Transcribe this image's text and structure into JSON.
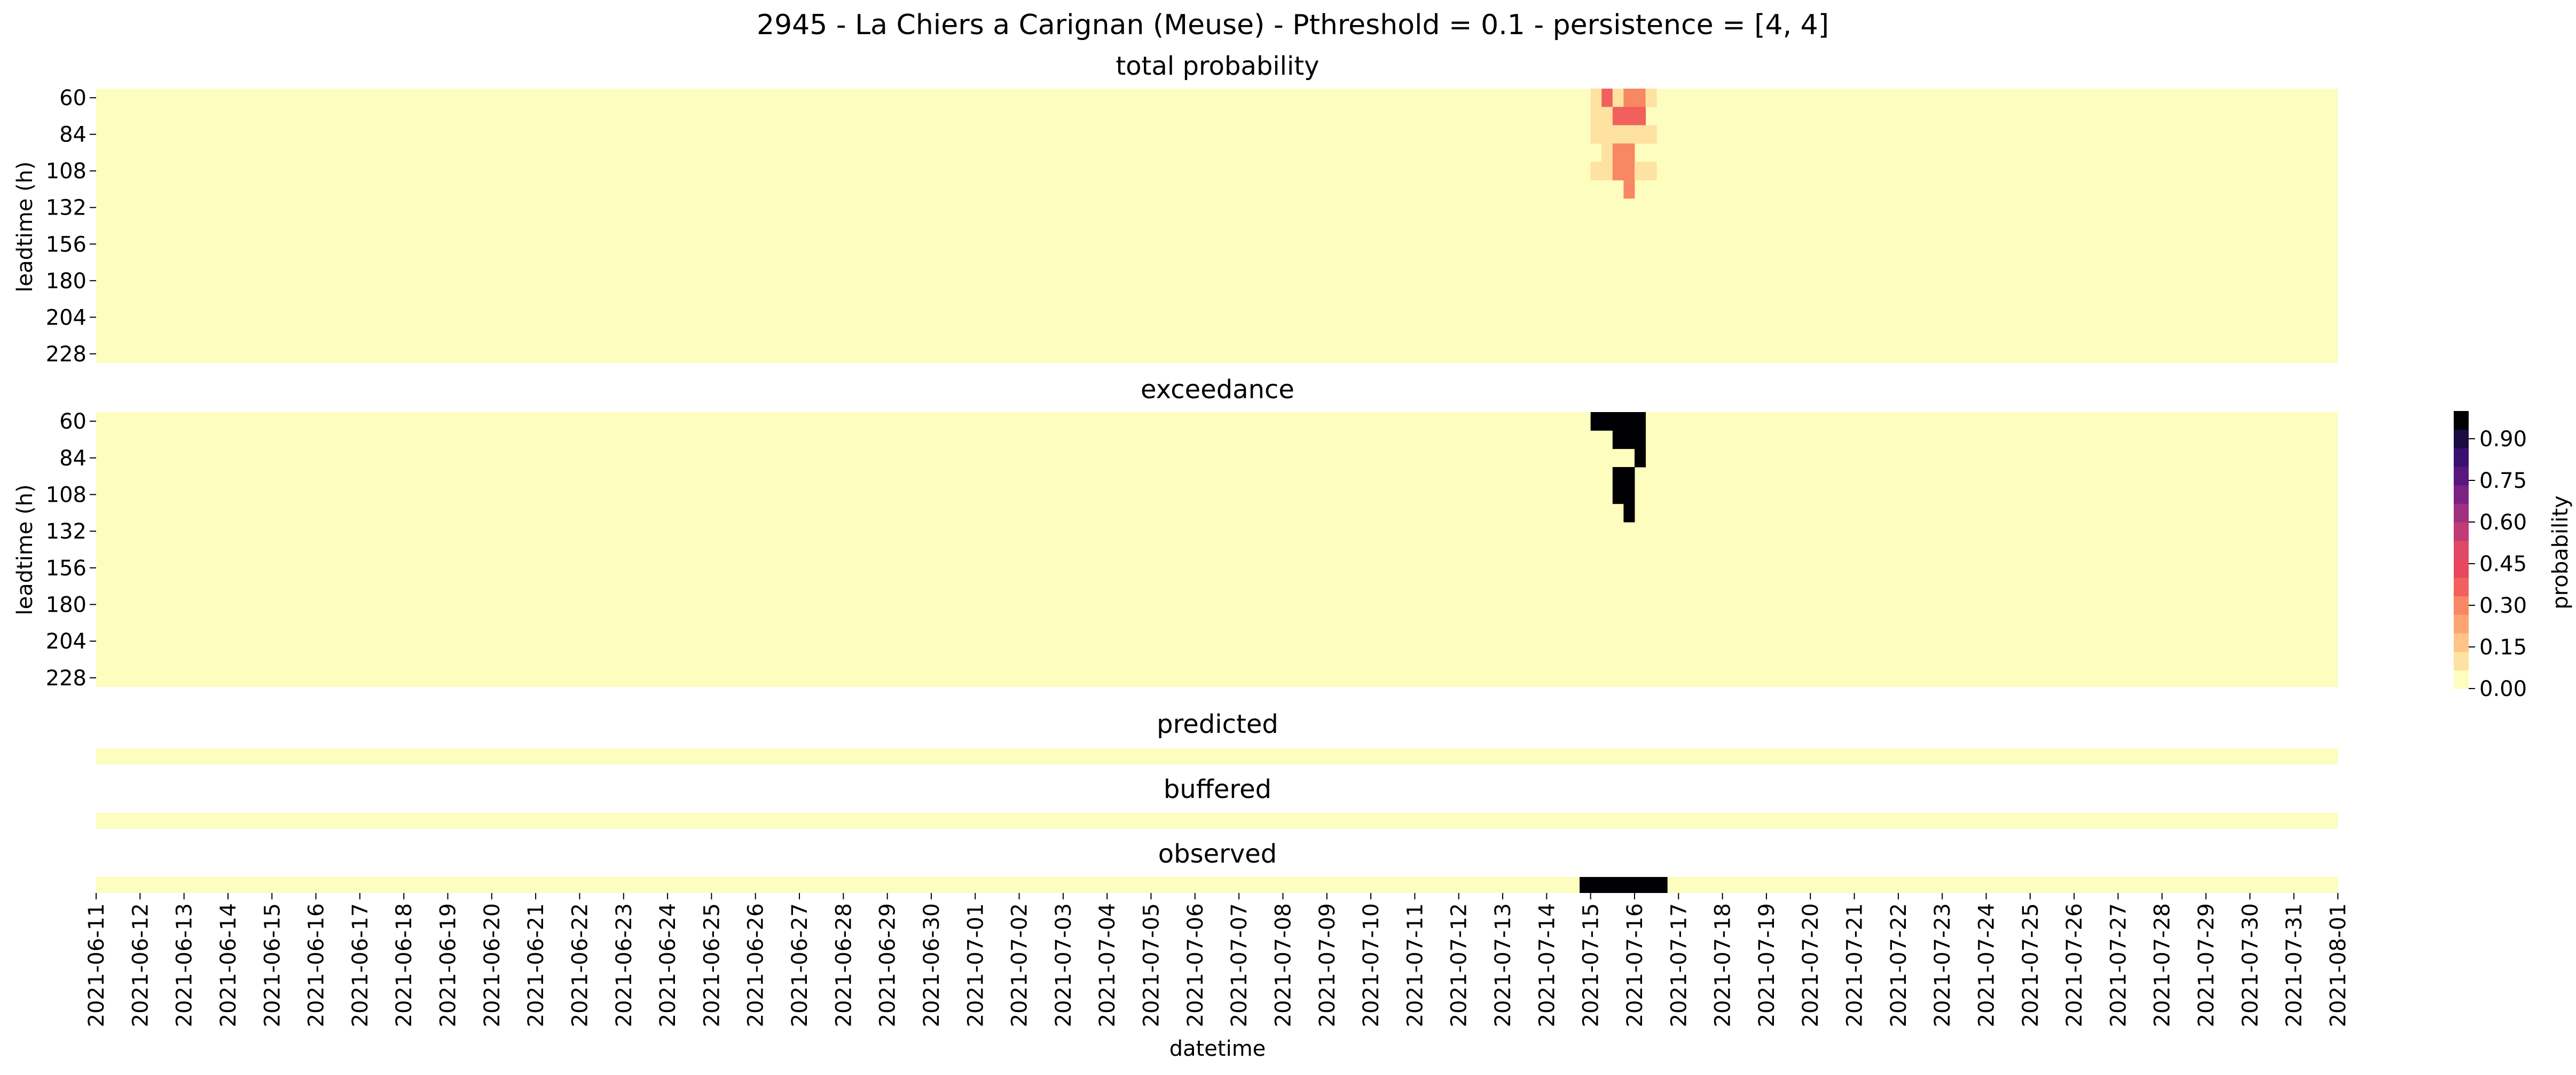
{
  "figure": {
    "title": "2945 - La Chiers a Carignan (Meuse) - Pthreshold = 0.1 - persistence = [4, 4]",
    "xlabel": "datetime"
  },
  "colors": {
    "background_cell": "#fcfdbf",
    "exceed_cell": "#000004",
    "palette": [
      "#fcfdbf",
      "#fde2a2",
      "#fec488",
      "#fca572",
      "#f88763",
      "#f1605d",
      "#e8475f",
      "#de4968",
      "#c13b75",
      "#9f2f7f",
      "#7b2382",
      "#5a167e",
      "#3b0f70",
      "#1b0c41",
      "#000004"
    ]
  },
  "chart_data": [
    {
      "type": "heatmap",
      "name": "total-probability",
      "title": "total probability",
      "ylabel": "leadtime (h)",
      "yticks": [
        "60",
        "84",
        "108",
        "132",
        "156",
        "180",
        "204",
        "228"
      ],
      "leadtimes": [
        60,
        240
      ],
      "x_dates": [
        "2021-06-11",
        "2021-06-12",
        "2021-06-13",
        "2021-06-14",
        "2021-06-15",
        "2021-06-16",
        "2021-06-17",
        "2021-06-18",
        "2021-06-19",
        "2021-06-20",
        "2021-06-21",
        "2021-06-22",
        "2021-06-23",
        "2021-06-24",
        "2021-06-25",
        "2021-06-26",
        "2021-06-27",
        "2021-06-28",
        "2021-06-29",
        "2021-06-30",
        "2021-07-01",
        "2021-07-02",
        "2021-07-03",
        "2021-07-04",
        "2021-07-05",
        "2021-07-06",
        "2021-07-07",
        "2021-07-08",
        "2021-07-09",
        "2021-07-10",
        "2021-07-11",
        "2021-07-12",
        "2021-07-13",
        "2021-07-14",
        "2021-07-15",
        "2021-07-16",
        "2021-07-17",
        "2021-07-18",
        "2021-07-19",
        "2021-07-20",
        "2021-07-21",
        "2021-07-22",
        "2021-07-23",
        "2021-07-24",
        "2021-07-25",
        "2021-07-26",
        "2021-07-27",
        "2021-07-28",
        "2021-07-29",
        "2021-07-30",
        "2021-07-31",
        "2021-08-01"
      ],
      "nonzero_cells": [
        {
          "date": "2021-07-15 00:00",
          "leadtime": 60,
          "value": 0.05
        },
        {
          "date": "2021-07-15 06:00",
          "leadtime": 60,
          "value": 0.35
        },
        {
          "date": "2021-07-15 12:00",
          "leadtime": 60,
          "value": 0.1
        },
        {
          "date": "2021-07-15 18:00",
          "leadtime": 60,
          "value": 0.3
        },
        {
          "date": "2021-07-16 00:00",
          "leadtime": 60,
          "value": 0.3
        },
        {
          "date": "2021-07-16 06:00",
          "leadtime": 60,
          "value": 0.05
        },
        {
          "date": "2021-07-15 00:00",
          "leadtime": 72,
          "value": 0.05
        },
        {
          "date": "2021-07-15 06:00",
          "leadtime": 72,
          "value": 0.05
        },
        {
          "date": "2021-07-15 12:00",
          "leadtime": 72,
          "value": 0.35
        },
        {
          "date": "2021-07-15 18:00",
          "leadtime": 72,
          "value": 0.35
        },
        {
          "date": "2021-07-16 00:00",
          "leadtime": 72,
          "value": 0.35
        },
        {
          "date": "2021-07-15 00:00",
          "leadtime": 84,
          "value": 0.05
        },
        {
          "date": "2021-07-15 06:00",
          "leadtime": 84,
          "value": 0.1
        },
        {
          "date": "2021-07-15 12:00",
          "leadtime": 84,
          "value": 0.1
        },
        {
          "date": "2021-07-15 18:00",
          "leadtime": 84,
          "value": 0.1
        },
        {
          "date": "2021-07-16 00:00",
          "leadtime": 84,
          "value": 0.1
        },
        {
          "date": "2021-07-16 06:00",
          "leadtime": 84,
          "value": 0.05
        },
        {
          "date": "2021-07-15 06:00",
          "leadtime": 96,
          "value": 0.05
        },
        {
          "date": "2021-07-15 12:00",
          "leadtime": 96,
          "value": 0.25
        },
        {
          "date": "2021-07-15 18:00",
          "leadtime": 96,
          "value": 0.25
        },
        {
          "date": "2021-07-15 00:00",
          "leadtime": 108,
          "value": 0.05
        },
        {
          "date": "2021-07-15 06:00",
          "leadtime": 108,
          "value": 0.1
        },
        {
          "date": "2021-07-15 12:00",
          "leadtime": 108,
          "value": 0.25
        },
        {
          "date": "2021-07-15 18:00",
          "leadtime": 108,
          "value": 0.25
        },
        {
          "date": "2021-07-16 00:00",
          "leadtime": 108,
          "value": 0.1
        },
        {
          "date": "2021-07-16 06:00",
          "leadtime": 108,
          "value": 0.05
        },
        {
          "date": "2021-07-15 18:00",
          "leadtime": 120,
          "value": 0.25
        }
      ]
    },
    {
      "type": "heatmap",
      "name": "exceedance",
      "title": "exceedance",
      "ylabel": "leadtime (h)",
      "yticks": [
        "60",
        "84",
        "108",
        "132",
        "156",
        "180",
        "204",
        "228"
      ],
      "leadtimes": [
        60,
        240
      ],
      "exceed_cells": [
        {
          "date": "2021-07-15 00:00",
          "leadtime": 60
        },
        {
          "date": "2021-07-15 06:00",
          "leadtime": 60
        },
        {
          "date": "2021-07-15 12:00",
          "leadtime": 60
        },
        {
          "date": "2021-07-15 18:00",
          "leadtime": 60
        },
        {
          "date": "2021-07-16 00:00",
          "leadtime": 60
        },
        {
          "date": "2021-07-15 12:00",
          "leadtime": 72
        },
        {
          "date": "2021-07-15 18:00",
          "leadtime": 72
        },
        {
          "date": "2021-07-16 00:00",
          "leadtime": 72
        },
        {
          "date": "2021-07-16 00:00",
          "leadtime": 84
        },
        {
          "date": "2021-07-15 12:00",
          "leadtime": 96
        },
        {
          "date": "2021-07-15 18:00",
          "leadtime": 96
        },
        {
          "date": "2021-07-15 12:00",
          "leadtime": 108
        },
        {
          "date": "2021-07-15 18:00",
          "leadtime": 108
        },
        {
          "date": "2021-07-15 18:00",
          "leadtime": 120
        }
      ]
    },
    {
      "type": "heatmap",
      "name": "predicted",
      "title": "predicted",
      "events": []
    },
    {
      "type": "heatmap",
      "name": "buffered",
      "title": "buffered",
      "events": []
    },
    {
      "type": "heatmap",
      "name": "observed",
      "title": "observed",
      "events": [
        {
          "start": "2021-07-14 18:00",
          "end": "2021-07-16 18:00"
        }
      ]
    }
  ],
  "colorbar": {
    "label": "probability",
    "ticks": [
      {
        "value": 0.0,
        "label": "0.00"
      },
      {
        "value": 0.15,
        "label": "0.15"
      },
      {
        "value": 0.3,
        "label": "0.30"
      },
      {
        "value": 0.45,
        "label": "0.45"
      },
      {
        "value": 0.6,
        "label": "0.60"
      },
      {
        "value": 0.75,
        "label": "0.75"
      },
      {
        "value": 0.9,
        "label": "0.90"
      }
    ],
    "range": [
      0,
      1
    ]
  }
}
